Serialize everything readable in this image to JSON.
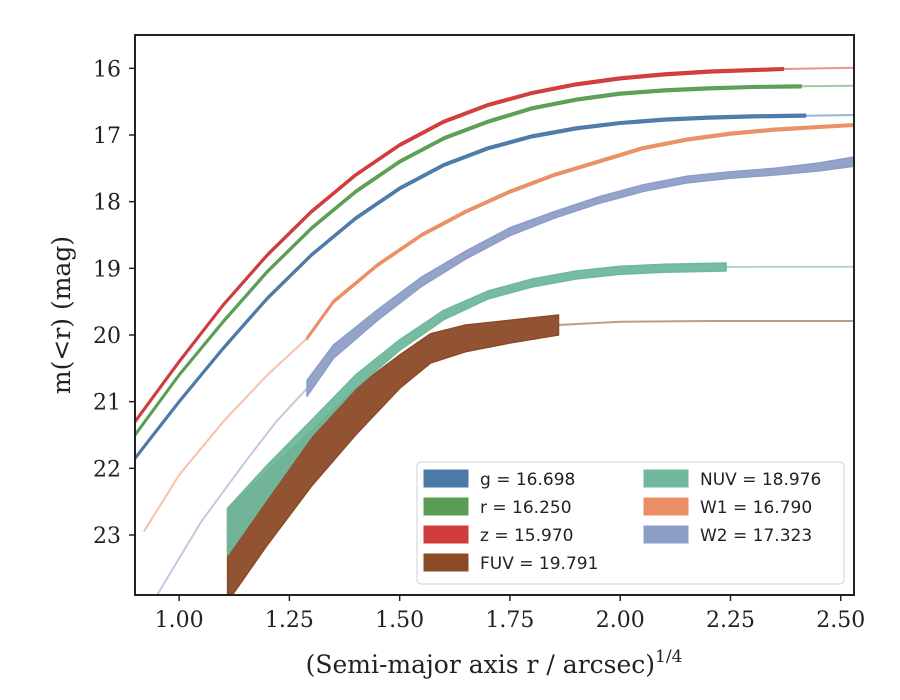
{
  "chart_data": {
    "type": "line",
    "xlabel": "(Semi-major axis r / arcsec)",
    "xlabel_superscript": "1/4",
    "ylabel": "m(<r) (mag)",
    "xlim": [
      0.9,
      2.53
    ],
    "ylim": [
      23.9,
      15.5
    ],
    "y_inverted": true,
    "x_ticks": [
      "1.00",
      "1.25",
      "1.50",
      "1.75",
      "2.00",
      "2.25",
      "2.50"
    ],
    "y_ticks": [
      "16",
      "17",
      "18",
      "19",
      "20",
      "21",
      "22",
      "23"
    ],
    "grid": false,
    "legend_position": "lower-right",
    "series": [
      {
        "name": "g",
        "label": "g = 16.698",
        "color": "#4c7aa8",
        "measured": {
          "x": [
            0.9,
            1.0,
            1.1,
            1.2,
            1.3,
            1.4,
            1.5,
            1.6,
            1.7,
            1.8,
            1.9,
            2.0,
            2.1,
            2.2,
            2.3,
            2.42
          ],
          "y": [
            21.85,
            21.0,
            20.2,
            19.45,
            18.8,
            18.25,
            17.8,
            17.45,
            17.2,
            17.02,
            16.9,
            16.82,
            16.77,
            16.74,
            16.72,
            16.71
          ],
          "err": 0.02
        },
        "model": {
          "x": [
            2.42,
            2.53
          ],
          "y": [
            16.71,
            16.7
          ]
        }
      },
      {
        "name": "r",
        "label": "r = 16.250",
        "color": "#5a9e56",
        "measured": {
          "x": [
            0.9,
            1.0,
            1.1,
            1.2,
            1.3,
            1.4,
            1.5,
            1.6,
            1.7,
            1.8,
            1.9,
            2.0,
            2.1,
            2.2,
            2.3,
            2.41
          ],
          "y": [
            21.5,
            20.6,
            19.8,
            19.05,
            18.4,
            17.85,
            17.4,
            17.05,
            16.8,
            16.6,
            16.47,
            16.38,
            16.33,
            16.3,
            16.28,
            16.27
          ],
          "err": 0.02
        },
        "model": {
          "x": [
            2.41,
            2.53
          ],
          "y": [
            16.27,
            16.26
          ]
        }
      },
      {
        "name": "z",
        "label": "z = 15.970",
        "color": "#d03b3b",
        "measured": {
          "x": [
            0.9,
            1.0,
            1.1,
            1.2,
            1.3,
            1.4,
            1.5,
            1.6,
            1.7,
            1.8,
            1.9,
            2.0,
            2.1,
            2.2,
            2.37
          ],
          "y": [
            21.3,
            20.4,
            19.55,
            18.8,
            18.15,
            17.6,
            17.15,
            16.8,
            16.55,
            16.37,
            16.24,
            16.15,
            16.09,
            16.05,
            16.01
          ],
          "err": 0.02
        },
        "model": {
          "x": [
            2.37,
            2.53
          ],
          "y": [
            16.01,
            15.99
          ]
        }
      },
      {
        "name": "FUV",
        "label": "FUV = 19.791",
        "color": "#8b4a26",
        "measured": {
          "x": [
            1.11,
            1.2,
            1.3,
            1.4,
            1.5,
            1.57,
            1.65,
            1.75,
            1.86
          ],
          "y": [
            23.3,
            22.6,
            21.85,
            21.15,
            20.55,
            20.2,
            20.05,
            19.95,
            19.85
          ],
          "err": [
            0.7,
            0.55,
            0.42,
            0.35,
            0.25,
            0.22,
            0.2,
            0.17,
            0.15
          ]
        },
        "model": {
          "x": [
            1.86,
            2.0,
            2.2,
            2.4,
            2.53
          ],
          "y": [
            19.85,
            19.8,
            19.79,
            19.79,
            19.79
          ]
        }
      },
      {
        "name": "NUV",
        "label": "NUV = 18.976",
        "color": "#6fb89c",
        "measured": {
          "x": [
            1.11,
            1.2,
            1.3,
            1.4,
            1.5,
            1.6,
            1.7,
            1.8,
            1.9,
            2.0,
            2.1,
            2.24
          ],
          "y": [
            22.95,
            22.2,
            21.4,
            20.7,
            20.15,
            19.7,
            19.4,
            19.22,
            19.1,
            19.03,
            19.0,
            18.98
          ],
          "err": [
            0.35,
            0.25,
            0.12,
            0.1,
            0.08,
            0.07,
            0.06,
            0.06,
            0.06,
            0.06,
            0.06,
            0.06
          ]
        },
        "model": {
          "x": [
            2.24,
            2.35,
            2.45,
            2.53
          ],
          "y": [
            18.98,
            18.977,
            18.976,
            18.976
          ]
        }
      },
      {
        "name": "W1",
        "label": "W1 = 16.790",
        "color": "#ea8f63",
        "measured": {
          "x": [
            1.29,
            1.35,
            1.45,
            1.55,
            1.65,
            1.75,
            1.85,
            1.95,
            2.05,
            2.15,
            2.25,
            2.35,
            2.45,
            2.53
          ],
          "y": [
            20.05,
            19.5,
            18.95,
            18.5,
            18.15,
            17.85,
            17.6,
            17.4,
            17.2,
            17.07,
            16.98,
            16.92,
            16.88,
            16.85
          ],
          "err": 0.02
        },
        "model": {
          "x": [
            0.92,
            1.0,
            1.1,
            1.2,
            1.29
          ],
          "y": [
            22.95,
            22.1,
            21.3,
            20.6,
            20.05
          ]
        }
      },
      {
        "name": "W2",
        "label": "W2 = 17.323",
        "color": "#8d9ec6",
        "measured": {
          "x": [
            1.29,
            1.35,
            1.45,
            1.55,
            1.65,
            1.75,
            1.85,
            1.95,
            2.05,
            2.15,
            2.25,
            2.35,
            2.45,
            2.53
          ],
          "y": [
            20.8,
            20.25,
            19.7,
            19.2,
            18.8,
            18.45,
            18.2,
            17.98,
            17.8,
            17.67,
            17.6,
            17.55,
            17.48,
            17.4
          ],
          "err": [
            0.12,
            0.1,
            0.08,
            0.07,
            0.06,
            0.06,
            0.05,
            0.05,
            0.05,
            0.05,
            0.05,
            0.05,
            0.06,
            0.07
          ]
        },
        "model": {
          "x": [
            0.95,
            1.05,
            1.15,
            1.22,
            1.29
          ],
          "y": [
            23.9,
            22.8,
            21.9,
            21.3,
            20.8
          ]
        }
      }
    ]
  }
}
